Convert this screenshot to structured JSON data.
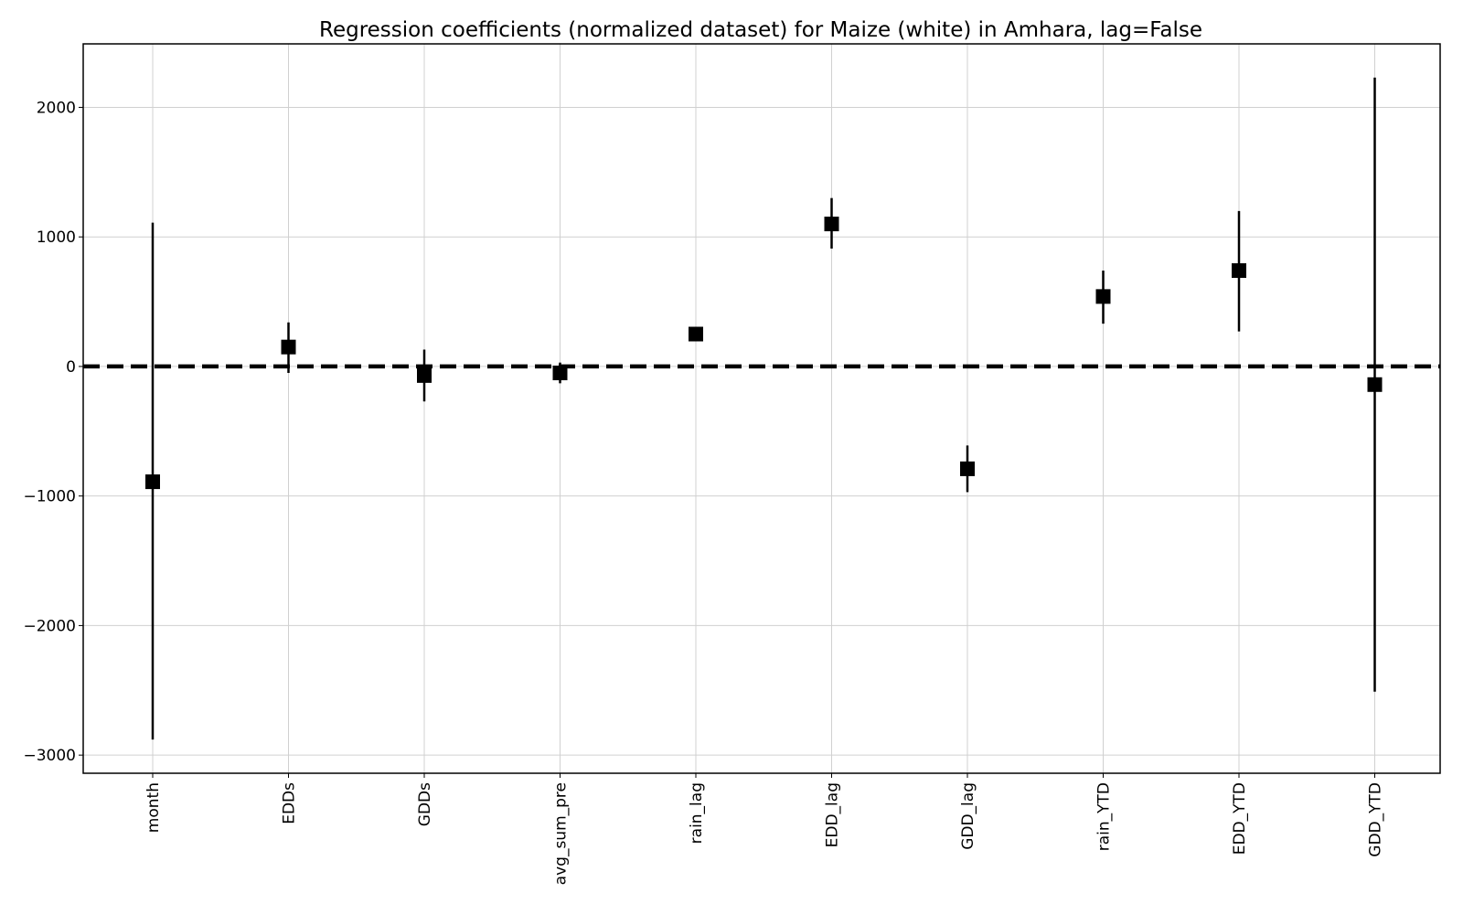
{
  "chart_data": {
    "type": "scatter",
    "title": "Regression coefficients (normalized dataset) for Maize (white) in Amhara, lag=False",
    "xlabel": "",
    "ylabel": "",
    "ylim": [
      -3140,
      2490
    ],
    "yticks": [
      2000,
      1000,
      0,
      -1000,
      -2000,
      -3000
    ],
    "ytick_labels": [
      "2000",
      "1000",
      "0",
      "−1000",
      "−2000",
      "−3000"
    ],
    "grid": true,
    "reference_line": {
      "y": 0,
      "style": "dashed"
    },
    "categories": [
      "month",
      "EDDs",
      "GDDs",
      "avg_sum_pre",
      "rain_lag",
      "EDD_lag",
      "GDD_lag",
      "rain_YTD",
      "EDD_YTD",
      "GDD_YTD"
    ],
    "values": [
      -890,
      150,
      -70,
      -50,
      250,
      1100,
      -790,
      540,
      740,
      -140
    ],
    "error_low": [
      -2880,
      -50,
      -270,
      -130,
      240,
      910,
      -970,
      330,
      270,
      -2510
    ],
    "error_high": [
      1110,
      340,
      130,
      30,
      260,
      1300,
      -610,
      740,
      1200,
      2230
    ],
    "colors": {
      "marker": "#000000",
      "grid": "#d0d0d0"
    }
  }
}
